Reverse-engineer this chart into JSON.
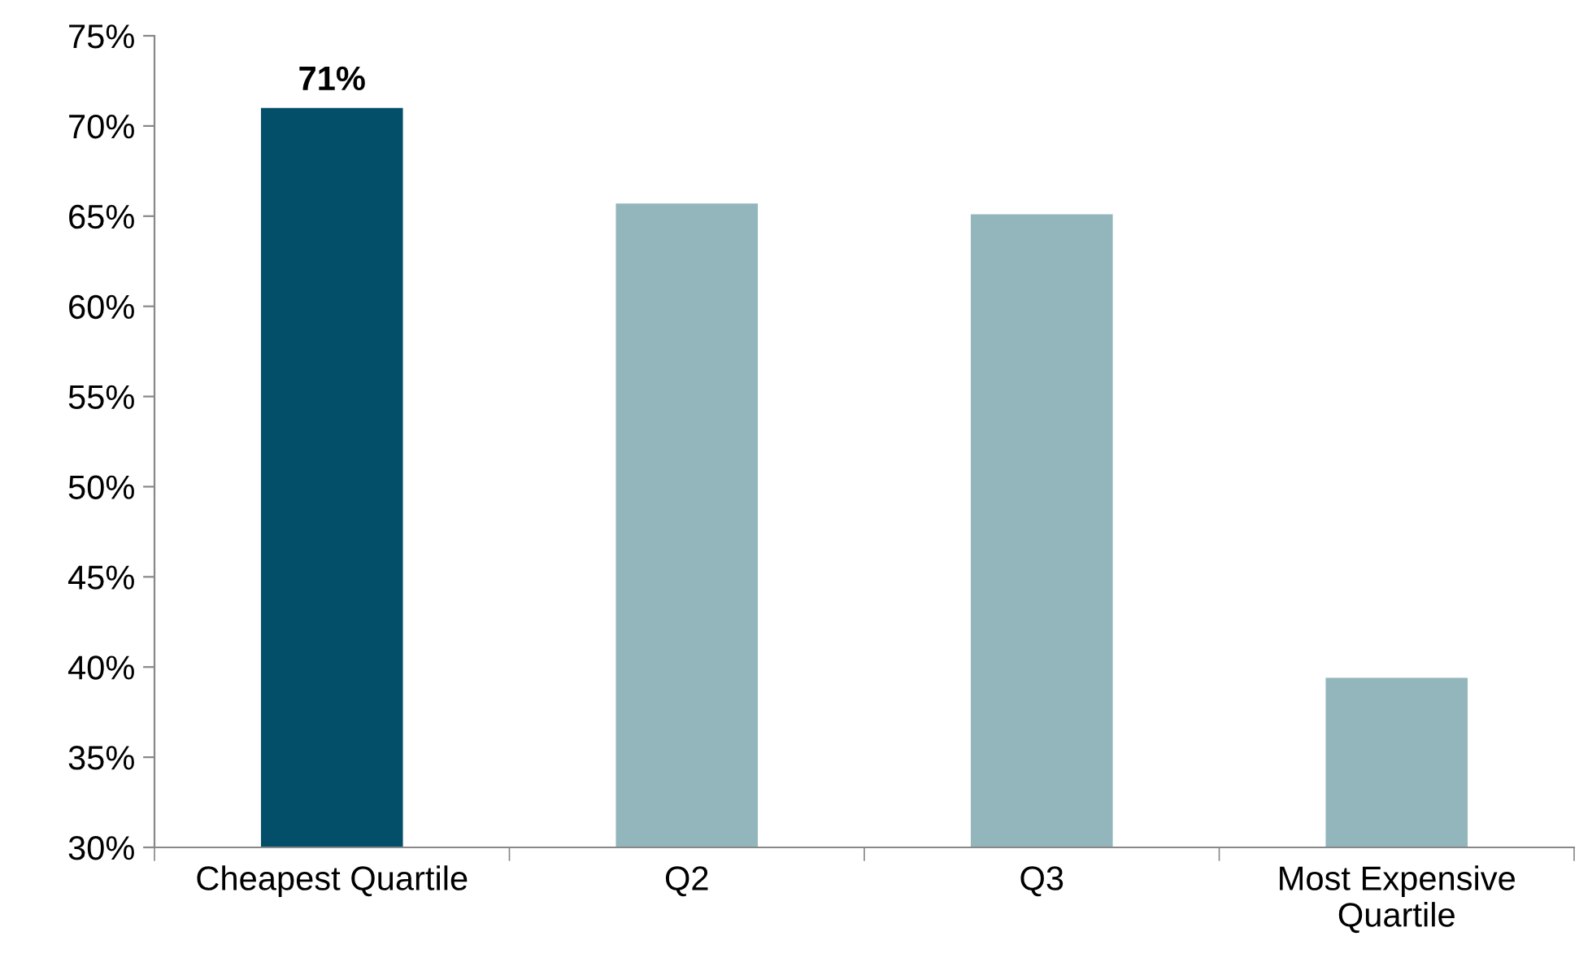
{
  "chart_data": {
    "type": "bar",
    "categories": [
      "Cheapest Quartile",
      "Q2",
      "Q3",
      "Most Expensive\nQuartile"
    ],
    "values": [
      71,
      65.7,
      65.1,
      39.4
    ],
    "colors": [
      "#034f69",
      "#92b6bb",
      "#92b6bb",
      "#92b6bb"
    ],
    "value_labels": [
      "71%",
      null,
      null,
      null
    ],
    "ylim": [
      30,
      75
    ],
    "yticks": [
      {
        "value": 30,
        "label": "30%"
      },
      {
        "value": 35,
        "label": "35%"
      },
      {
        "value": 40,
        "label": "40%"
      },
      {
        "value": 45,
        "label": "45%"
      },
      {
        "value": 50,
        "label": "50%"
      },
      {
        "value": 55,
        "label": "55%"
      },
      {
        "value": 60,
        "label": "60%"
      },
      {
        "value": 65,
        "label": "65%"
      },
      {
        "value": 70,
        "label": "70%"
      },
      {
        "value": 75,
        "label": "75%"
      }
    ],
    "grid": false,
    "legend": false
  }
}
